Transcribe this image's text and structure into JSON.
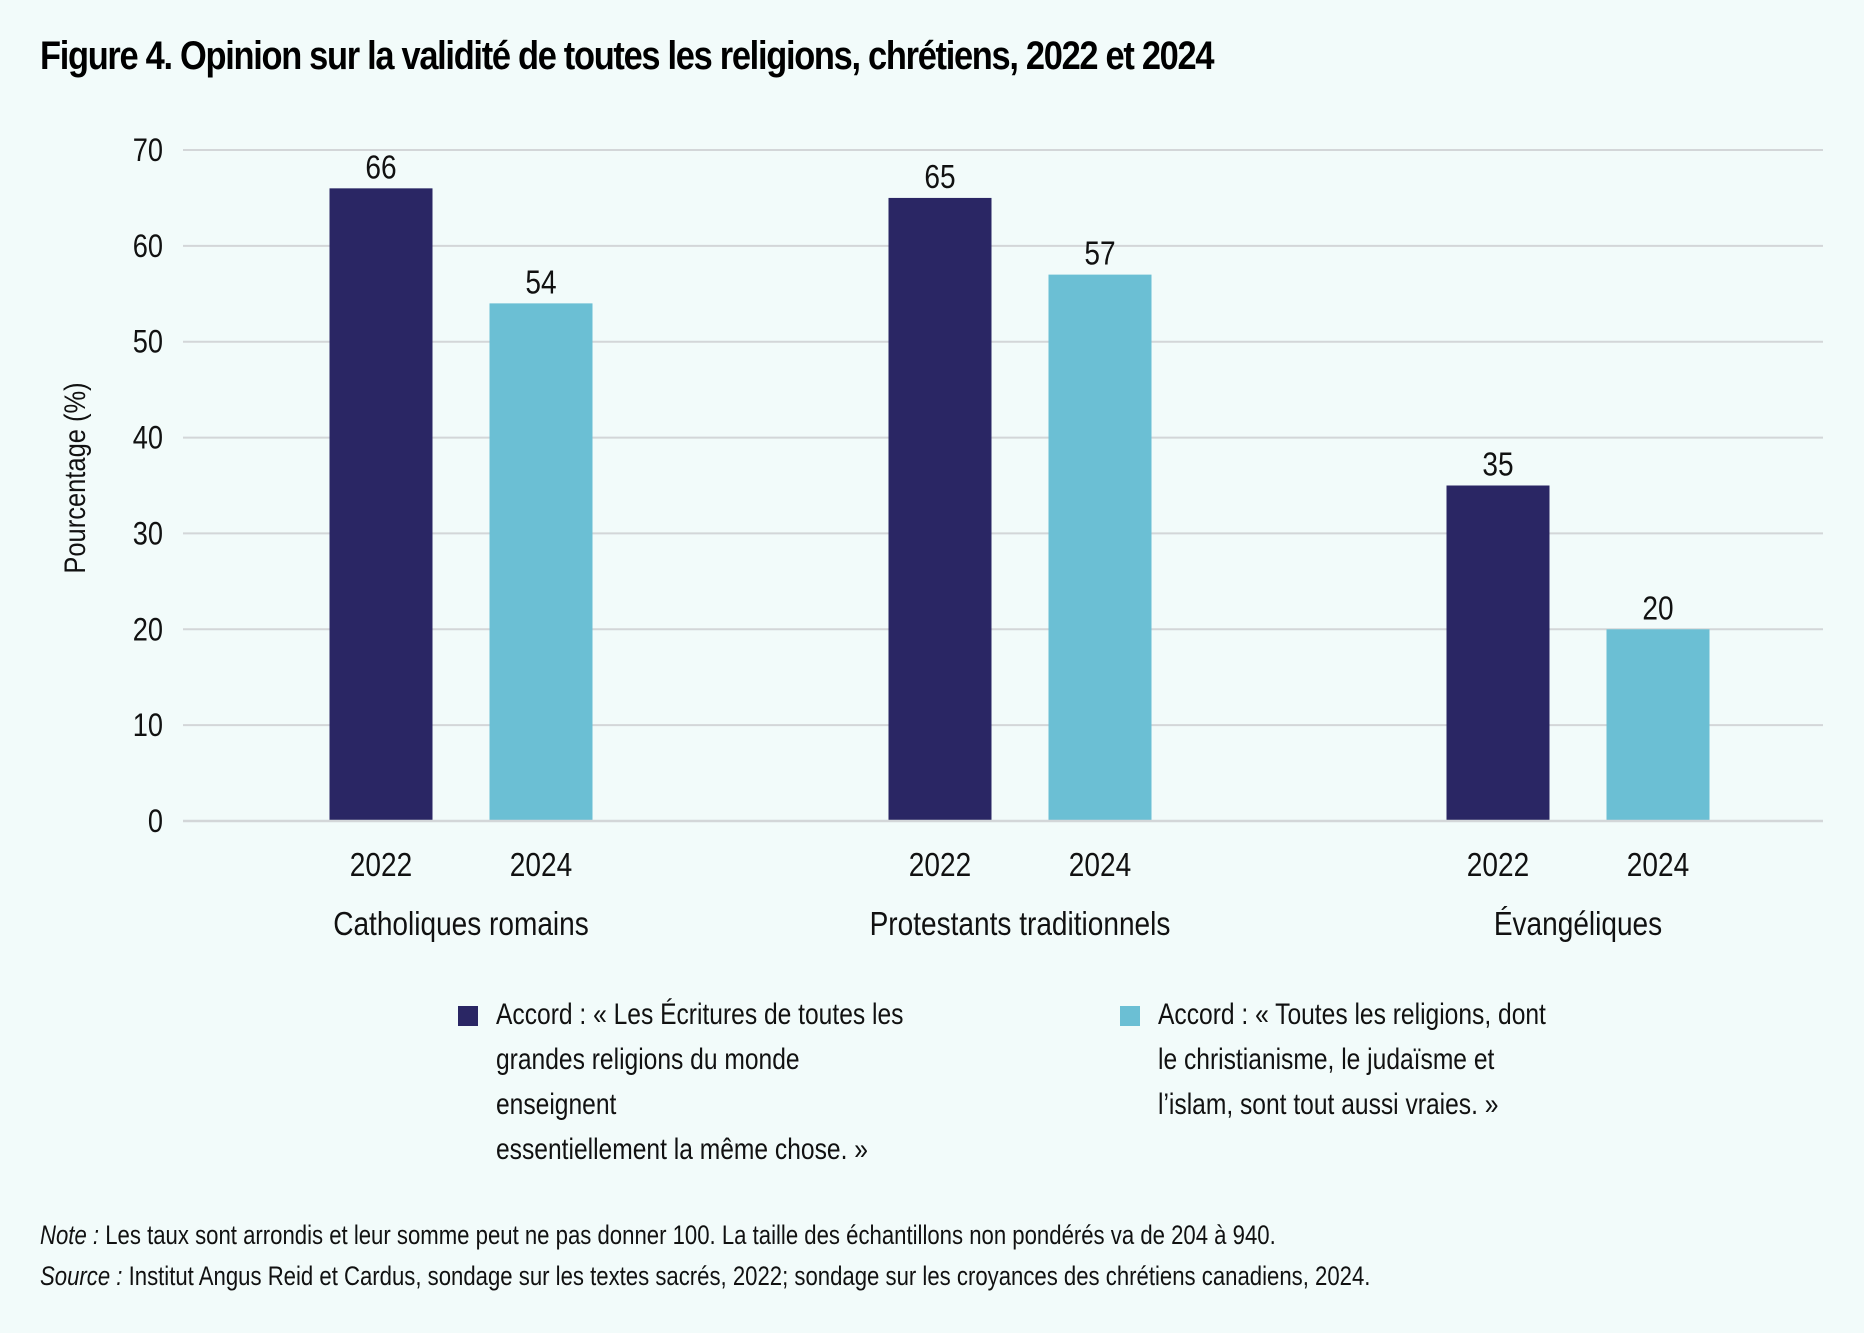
{
  "title": "Figure 4. Opinion sur la validité de toutes les religions, chrétiens, 2022 et 2024",
  "chart_data": {
    "type": "bar",
    "title": "Figure 4. Opinion sur la validité de toutes les religions, chrétiens, 2022 et 2024",
    "ylabel": "Pourcentage (%)",
    "xlabel": "",
    "ylim": [
      0,
      70
    ],
    "yticks": [
      0,
      10,
      20,
      30,
      40,
      50,
      60,
      70
    ],
    "grid": true,
    "legend_position": "bottom",
    "categories": [
      "Catholiques romains",
      "Protestants traditionnels",
      "Évangéliques"
    ],
    "bar_labels": [
      "2022",
      "2024"
    ],
    "series": [
      {
        "name": "Accord : « Les Écritures de toutes les grandes religions du monde enseignent essentiellement la même chose. »",
        "year": "2022",
        "color": "#2a2664",
        "values": [
          66,
          65,
          35
        ]
      },
      {
        "name": "Accord : « Toutes les religions, dont le christianisme, le judaïsme et l’islam, sont tout aussi vraies. »",
        "year": "2024",
        "color": "#6bbfd4",
        "values": [
          54,
          57,
          20
        ]
      }
    ]
  },
  "legend": [
    {
      "text": "Accord : « Les Écritures de toutes les\ngrandes religions du monde enseignent\nessentiellement la même chose. »",
      "color": "#2a2664"
    },
    {
      "text": "Accord : « Toutes les religions, dont\nle christianisme, le judaïsme et\nl’islam, sont tout aussi vraies. »",
      "color": "#6bbfd4"
    }
  ],
  "footer": {
    "note_label": "Note :",
    "note_text": " Les taux sont arrondis et leur somme peut ne pas donner 100. La taille des échantillons non pondérés va de 204 à 940.",
    "source_label": "Source :",
    "source_text": " Institut Angus Reid et Cardus, sondage sur les textes sacrés, 2022; sondage sur les croyances des chrétiens canadiens, 2024."
  },
  "colors": {
    "background": "#f2fbfa",
    "gridline": "#d3d6d8"
  }
}
